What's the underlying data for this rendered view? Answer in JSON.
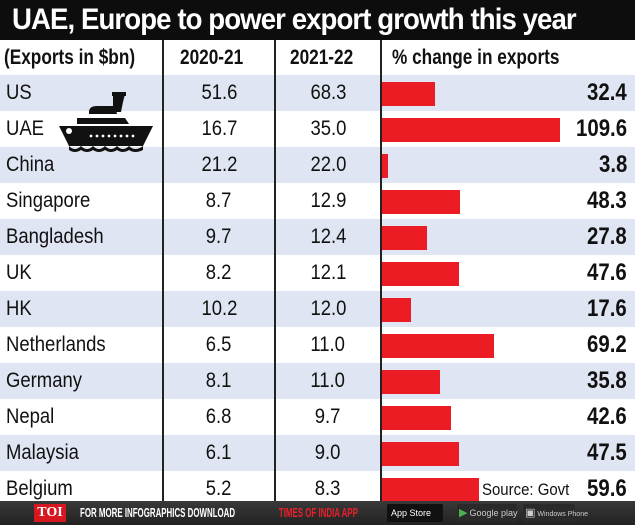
{
  "title": "UAE, Europe to power export growth this year",
  "headers": {
    "country": "(Exports in $bn)",
    "year1": "2020-21",
    "year2": "2021-22",
    "pct": "% change in exports"
  },
  "source": "Source: Govt",
  "colors": {
    "title_bg": "#0d0d0d",
    "bar": "#ec1c24",
    "row_shade": "#dfe5f2",
    "footer_bg": "#2a2a2a",
    "toi_red": "#d7171f"
  },
  "icons": {
    "ship": "ship-icon"
  },
  "footer": {
    "logo": "TOI",
    "text_white": "FOR MORE  INFOGRAPHICS DOWNLOAD ",
    "text_red": "TIMES OF INDIA  APP",
    "app_store": "App Store",
    "google_play": "Google play",
    "windows_phone": "Windows Phone"
  },
  "chart_data": {
    "type": "table",
    "title": "UAE, Europe to power export growth this year",
    "unit": "Exports in $bn",
    "columns": [
      "(Exports in $bn)",
      "2020-21",
      "2021-22",
      "% change in exports"
    ],
    "bar_column": "% change in exports",
    "bar_max": 109.6,
    "rows": [
      {
        "country": "US",
        "y2020_21": "51.6",
        "y2021_22": "68.3",
        "pct": "32.4",
        "pct_value": 32.4
      },
      {
        "country": "UAE",
        "y2020_21": "16.7",
        "y2021_22": "35.0",
        "pct": "109.6",
        "pct_value": 109.6
      },
      {
        "country": "China",
        "y2020_21": "21.2",
        "y2021_22": "22.0",
        "pct": "3.8",
        "pct_value": 3.8
      },
      {
        "country": "Singapore",
        "y2020_21": "8.7",
        "y2021_22": "12.9",
        "pct": "48.3",
        "pct_value": 48.3
      },
      {
        "country": "Bangladesh",
        "y2020_21": "9.7",
        "y2021_22": "12.4",
        "pct": "27.8",
        "pct_value": 27.8
      },
      {
        "country": "UK",
        "y2020_21": "8.2",
        "y2021_22": "12.1",
        "pct": "47.6",
        "pct_value": 47.6
      },
      {
        "country": "HK",
        "y2020_21": "10.2",
        "y2021_22": "12.0",
        "pct": "17.6",
        "pct_value": 17.6
      },
      {
        "country": "Netherlands",
        "y2020_21": "6.5",
        "y2021_22": "11.0",
        "pct": "69.2",
        "pct_value": 69.2
      },
      {
        "country": "Germany",
        "y2020_21": "8.1",
        "y2021_22": "11.0",
        "pct": "35.8",
        "pct_value": 35.8
      },
      {
        "country": "Nepal",
        "y2020_21": "6.8",
        "y2021_22": "9.7",
        "pct": "42.6",
        "pct_value": 42.6
      },
      {
        "country": "Malaysia",
        "y2020_21": "6.1",
        "y2021_22": "9.0",
        "pct": "47.5",
        "pct_value": 47.5
      },
      {
        "country": "Belgium",
        "y2020_21": "5.2",
        "y2021_22": "8.3",
        "pct": "59.6",
        "pct_value": 59.6
      }
    ]
  }
}
